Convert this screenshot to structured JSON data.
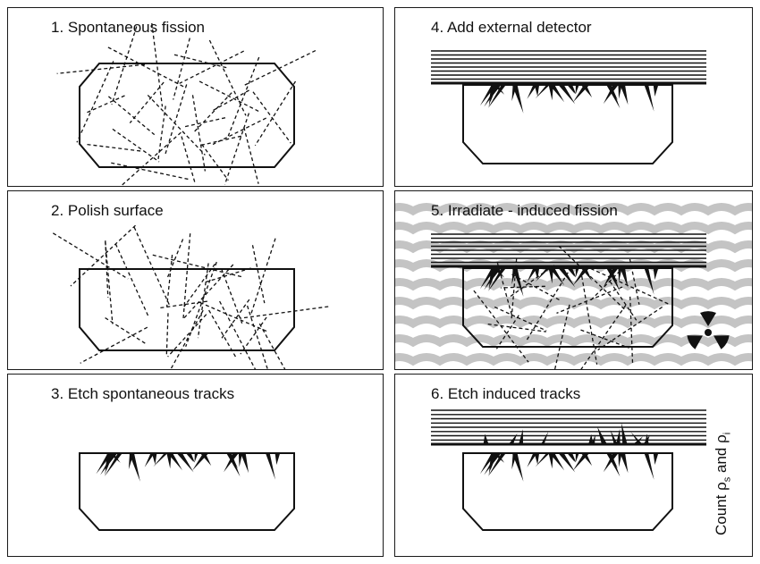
{
  "panels": {
    "p1": {
      "title": "1. Spontaneous fission"
    },
    "p2": {
      "title": "2. Polish surface"
    },
    "p3": {
      "title": "3. Etch spontaneous tracks"
    },
    "p4": {
      "title": "4. Add external detector"
    },
    "p5": {
      "title": "5. Irradiate - induced fission"
    },
    "p6": {
      "title": "6. Etch induced tracks"
    }
  },
  "count_label": {
    "text": "Count ",
    "rho": "ρ",
    "sub_s": "s",
    "and": " and ",
    "sub_i": "i"
  },
  "colors": {
    "ink": "#111111",
    "irradiation_wave": "#c4c4c4",
    "panel_border": "#1a1a1a"
  },
  "icons": {
    "radiation": "radiation-trefoil-icon"
  }
}
